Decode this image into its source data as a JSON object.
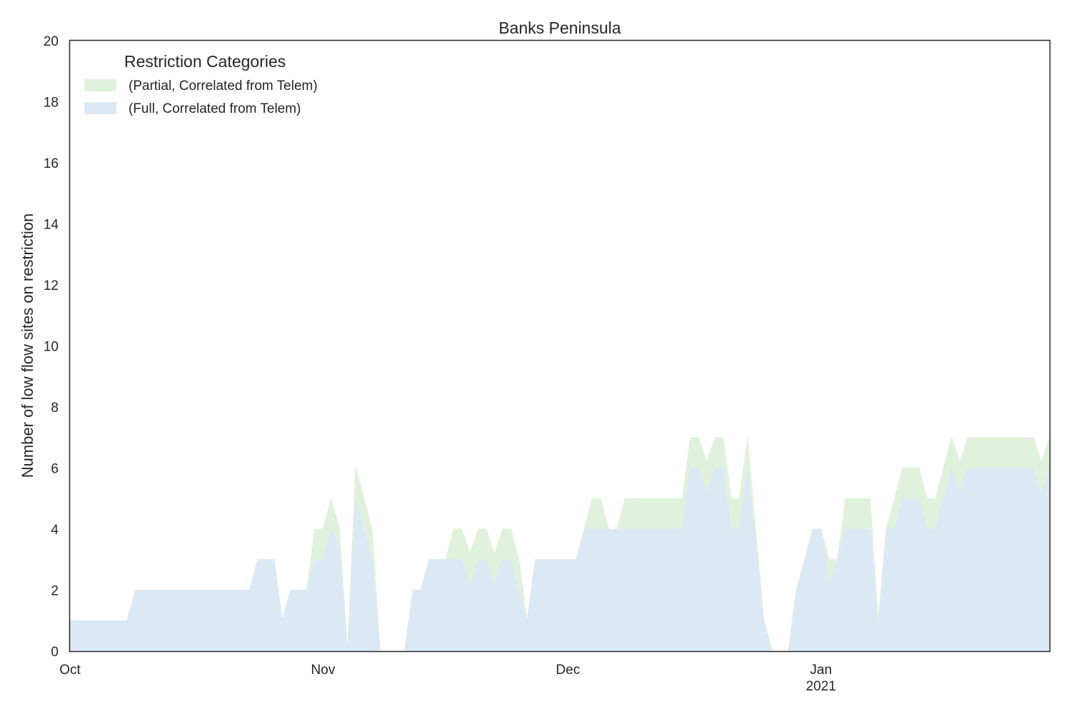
{
  "colors": {
    "partial": "#e0f2dc",
    "full": "#dbe9f5",
    "axis": "#262626"
  },
  "chart_data": {
    "type": "area",
    "stacked": true,
    "title": "Banks Peninsula",
    "xlabel": "",
    "ylabel": "Number of low flow sites on restriction",
    "ylim": [
      0,
      20
    ],
    "yticks": [
      "0",
      "2",
      "4",
      "6",
      "8",
      "10",
      "12",
      "14",
      "16",
      "18",
      "20"
    ],
    "xlim": [
      "2020-10-01",
      "2021-01-29"
    ],
    "xticks": [
      {
        "date": "2020-10-01",
        "label": "Oct",
        "sublabel": ""
      },
      {
        "date": "2020-11-01",
        "label": "Nov",
        "sublabel": ""
      },
      {
        "date": "2020-12-01",
        "label": "Dec",
        "sublabel": ""
      },
      {
        "date": "2021-01-01",
        "label": "Jan",
        "sublabel": "2021"
      }
    ],
    "grid": false,
    "legend": {
      "title": "Restriction Categories",
      "placement": "top-left",
      "entries": [
        "(Partial, Correlated from Telem)",
        "(Full, Correlated from Telem)"
      ]
    },
    "series": [
      {
        "name": "(Full, Correlated from Telem)",
        "color_key": "full",
        "points": [
          [
            "2020-10-01",
            1
          ],
          [
            "2020-10-08",
            1
          ],
          [
            "2020-10-09",
            2
          ],
          [
            "2020-10-23",
            2
          ],
          [
            "2020-10-24",
            3
          ],
          [
            "2020-10-26",
            3
          ],
          [
            "2020-10-27",
            1
          ],
          [
            "2020-10-28",
            2
          ],
          [
            "2020-10-30",
            2
          ],
          [
            "2020-10-31",
            3
          ],
          [
            "2020-11-01",
            3
          ],
          [
            "2020-11-02",
            4
          ],
          [
            "2020-11-03",
            3.5
          ],
          [
            "2020-11-04",
            0
          ],
          [
            "2020-11-05",
            5
          ],
          [
            "2020-11-07",
            3
          ],
          [
            "2020-11-08",
            0
          ],
          [
            "2020-11-10",
            0
          ],
          [
            "2020-11-11",
            0
          ],
          [
            "2020-11-12",
            2
          ],
          [
            "2020-11-13",
            2
          ],
          [
            "2020-11-14",
            3
          ],
          [
            "2020-11-16",
            3
          ],
          [
            "2020-11-17",
            3
          ],
          [
            "2020-11-18",
            3
          ],
          [
            "2020-11-19",
            2.2
          ],
          [
            "2020-11-20",
            3
          ],
          [
            "2020-11-21",
            3
          ],
          [
            "2020-11-22",
            2.2
          ],
          [
            "2020-11-23",
            3
          ],
          [
            "2020-11-24",
            3
          ],
          [
            "2020-11-25",
            2
          ],
          [
            "2020-11-26",
            1
          ],
          [
            "2020-11-27",
            3
          ],
          [
            "2020-11-30",
            3
          ],
          [
            "2020-12-02",
            3
          ],
          [
            "2020-12-03",
            4
          ],
          [
            "2020-12-08",
            4
          ],
          [
            "2020-12-09",
            4
          ],
          [
            "2020-12-15",
            4
          ],
          [
            "2020-12-16",
            6
          ],
          [
            "2020-12-17",
            6
          ],
          [
            "2020-12-18",
            5.2
          ],
          [
            "2020-12-19",
            6
          ],
          [
            "2020-12-20",
            6
          ],
          [
            "2020-12-21",
            4
          ],
          [
            "2020-12-22",
            4
          ],
          [
            "2020-12-23",
            6
          ],
          [
            "2020-12-25",
            1
          ],
          [
            "2020-12-26",
            0
          ],
          [
            "2020-12-27",
            0
          ],
          [
            "2020-12-28",
            0
          ],
          [
            "2020-12-29",
            2
          ],
          [
            "2020-12-30",
            3
          ],
          [
            "2020-12-31",
            4
          ],
          [
            "2021-01-01",
            4
          ],
          [
            "2021-01-02",
            2.2
          ],
          [
            "2021-01-03",
            3
          ],
          [
            "2021-01-04",
            4
          ],
          [
            "2021-01-07",
            4
          ],
          [
            "2021-01-08",
            0.8
          ],
          [
            "2021-01-09",
            4
          ],
          [
            "2021-01-10",
            4
          ],
          [
            "2021-01-11",
            5
          ],
          [
            "2021-01-13",
            5
          ],
          [
            "2021-01-14",
            4
          ],
          [
            "2021-01-15",
            4
          ],
          [
            "2021-01-17",
            6
          ],
          [
            "2021-01-18",
            5.2
          ],
          [
            "2021-01-19",
            6
          ],
          [
            "2021-01-27",
            6
          ],
          [
            "2021-01-28",
            5.2
          ],
          [
            "2021-01-29",
            6
          ]
        ]
      },
      {
        "name": "(Partial, Correlated from Telem)",
        "color_key": "partial",
        "points": [
          [
            "2020-10-01",
            1
          ],
          [
            "2020-10-08",
            1
          ],
          [
            "2020-10-09",
            2
          ],
          [
            "2020-10-23",
            2
          ],
          [
            "2020-10-24",
            3
          ],
          [
            "2020-10-26",
            3
          ],
          [
            "2020-10-27",
            1
          ],
          [
            "2020-10-28",
            2
          ],
          [
            "2020-10-30",
            2
          ],
          [
            "2020-10-31",
            4
          ],
          [
            "2020-11-01",
            4
          ],
          [
            "2020-11-02",
            5
          ],
          [
            "2020-11-03",
            4
          ],
          [
            "2020-11-04",
            0
          ],
          [
            "2020-11-05",
            6
          ],
          [
            "2020-11-07",
            4
          ],
          [
            "2020-11-08",
            0
          ],
          [
            "2020-11-10",
            0
          ],
          [
            "2020-11-11",
            0
          ],
          [
            "2020-11-12",
            2
          ],
          [
            "2020-11-13",
            2
          ],
          [
            "2020-11-14",
            3
          ],
          [
            "2020-11-16",
            3
          ],
          [
            "2020-11-17",
            4
          ],
          [
            "2020-11-18",
            4
          ],
          [
            "2020-11-19",
            3.2
          ],
          [
            "2020-11-20",
            4
          ],
          [
            "2020-11-21",
            4
          ],
          [
            "2020-11-22",
            3.2
          ],
          [
            "2020-11-23",
            4
          ],
          [
            "2020-11-24",
            4
          ],
          [
            "2020-11-25",
            3
          ],
          [
            "2020-11-26",
            1
          ],
          [
            "2020-11-27",
            3
          ],
          [
            "2020-11-30",
            3
          ],
          [
            "2020-12-02",
            3
          ],
          [
            "2020-12-03",
            4
          ],
          [
            "2020-12-04",
            5
          ],
          [
            "2020-12-05",
            5
          ],
          [
            "2020-12-06",
            4
          ],
          [
            "2020-12-07",
            4
          ],
          [
            "2020-12-08",
            5
          ],
          [
            "2020-12-15",
            5
          ],
          [
            "2020-12-16",
            7
          ],
          [
            "2020-12-17",
            7
          ],
          [
            "2020-12-18",
            6.2
          ],
          [
            "2020-12-19",
            7
          ],
          [
            "2020-12-20",
            7
          ],
          [
            "2020-12-21",
            5
          ],
          [
            "2020-12-22",
            5
          ],
          [
            "2020-12-23",
            7
          ],
          [
            "2020-12-25",
            1
          ],
          [
            "2020-12-26",
            0
          ],
          [
            "2020-12-28",
            0
          ],
          [
            "2020-12-29",
            2
          ],
          [
            "2020-12-30",
            3
          ],
          [
            "2020-12-31",
            4
          ],
          [
            "2021-01-01",
            4
          ],
          [
            "2021-01-02",
            3
          ],
          [
            "2021-01-03",
            3
          ],
          [
            "2021-01-04",
            5
          ],
          [
            "2021-01-07",
            5
          ],
          [
            "2021-01-08",
            1
          ],
          [
            "2021-01-09",
            4
          ],
          [
            "2021-01-11",
            6
          ],
          [
            "2021-01-13",
            6
          ],
          [
            "2021-01-14",
            5
          ],
          [
            "2021-01-15",
            5
          ],
          [
            "2021-01-17",
            7
          ],
          [
            "2021-01-18",
            6.2
          ],
          [
            "2021-01-19",
            7
          ],
          [
            "2021-01-27",
            7
          ],
          [
            "2021-01-28",
            6.2
          ],
          [
            "2021-01-29",
            7
          ]
        ]
      }
    ]
  }
}
